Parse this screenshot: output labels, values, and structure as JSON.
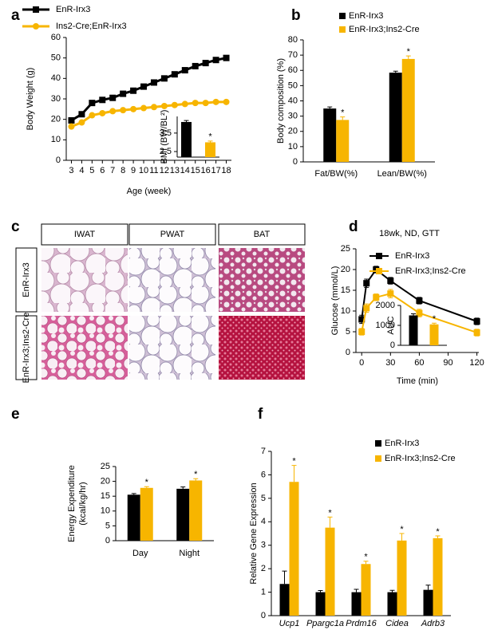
{
  "panel_labels": [
    "a",
    "b",
    "c",
    "d",
    "e",
    "f"
  ],
  "histology": {
    "columns": [
      "IWAT",
      "PWAT",
      "BAT"
    ],
    "rows": [
      "EnR-Irx3",
      "EnR-Irx3;Ins2-Cre"
    ]
  },
  "chart_data": [
    {
      "type": "line",
      "xlabel": "Age (week)",
      "ylabel": "Body Weight (g)",
      "x": [
        3,
        4,
        5,
        6,
        7,
        8,
        9,
        10,
        11,
        12,
        13,
        14,
        15,
        16,
        17,
        18
      ],
      "xlim": [
        2.5,
        18.5
      ],
      "xticks": [
        3,
        4,
        5,
        6,
        7,
        8,
        9,
        10,
        11,
        12,
        13,
        14,
        15,
        16,
        17,
        18
      ],
      "ylim": [
        0,
        60
      ],
      "yticks": [
        0,
        10,
        20,
        30,
        40,
        50,
        60
      ],
      "series": [
        {
          "name": "EnR-Irx3",
          "color": "#000000",
          "marker": "square",
          "values": [
            19.5,
            22.5,
            28,
            29.5,
            30.5,
            32.5,
            34,
            36,
            38,
            40,
            42,
            44,
            46,
            47.5,
            49,
            50
          ]
        },
        {
          "name": "Ins2-Cre;EnR-Irx3",
          "color": "#f7b500",
          "marker": "circle",
          "values": [
            16.5,
            18.5,
            22,
            23,
            24,
            24.5,
            25,
            25.5,
            26,
            26.5,
            27,
            27.5,
            28,
            28,
            28.5,
            28.5
          ]
        }
      ]
    },
    {
      "type": "bar",
      "ylabel": "BMI (BW/BL²)",
      "ylim": [
        2.2,
        4.4
      ],
      "yticks": [
        2.5,
        3.5
      ],
      "series": [
        {
          "color": "#000000",
          "values": [
            4.1
          ],
          "errors": [
            0.08
          ]
        },
        {
          "color": "#f7b500",
          "values": [
            3.0
          ],
          "errors": [
            0.07
          ],
          "annotations": [
            "*"
          ]
        }
      ]
    },
    {
      "type": "bar",
      "ylabel": "Body composition (%)",
      "categories": [
        "Fat/BW(%)",
        "Lean/BW(%)"
      ],
      "ylim": [
        0,
        80
      ],
      "yticks": [
        0,
        10,
        20,
        30,
        40,
        50,
        60,
        70,
        80
      ],
      "series": [
        {
          "name": "EnR-Irx3",
          "color": "#000000",
          "values": [
            35,
            58.5
          ],
          "errors": [
            1,
            1
          ]
        },
        {
          "name": "EnR-Irx3;Ins2-Cre",
          "color": "#f7b500",
          "values": [
            27.5,
            67.5
          ],
          "errors": [
            2,
            2
          ],
          "annotations": [
            "*",
            "*"
          ]
        }
      ]
    },
    {
      "type": "line",
      "title": "18wk, ND, GTT",
      "xlabel": "Time (min)",
      "ylabel": "Glucose (mmol/L)",
      "x": [
        0,
        5,
        15,
        30,
        60,
        120
      ],
      "xlim": [
        -6,
        122
      ],
      "xticks": [
        0,
        30,
        60,
        90,
        120
      ],
      "ylim": [
        0,
        25
      ],
      "yticks": [
        0,
        5,
        10,
        15,
        20,
        25
      ],
      "series": [
        {
          "name": "EnR-Irx3",
          "color": "#000000",
          "marker": "square",
          "values": [
            8,
            16.7,
            20,
            17.3,
            12.5,
            7.5
          ],
          "errors": [
            1,
            1,
            0.8,
            0.8,
            0.8,
            0.8
          ]
        },
        {
          "name": "EnR-Irx3;Ins2-Cre",
          "color": "#f7b500",
          "marker": "square",
          "values": [
            5,
            10.7,
            13.3,
            14.2,
            9.5,
            4.8
          ],
          "errors": [
            0.8,
            1,
            0.8,
            1,
            0.9,
            0.8
          ]
        }
      ]
    },
    {
      "type": "bar",
      "ylabel": "AUC",
      "ylim": [
        0,
        2000
      ],
      "yticks": [
        0,
        1000,
        2000
      ],
      "series": [
        {
          "color": "#000000",
          "values": [
            1500
          ],
          "errors": [
            80
          ]
        },
        {
          "color": "#f7b500",
          "values": [
            1050
          ],
          "errors": [
            60
          ],
          "annotations": [
            "*"
          ]
        }
      ]
    },
    {
      "type": "bar",
      "ylabel": [
        "Energy Expenditure",
        "(kcal/kg/hr)"
      ],
      "categories": [
        "Day",
        "Night"
      ],
      "ylim": [
        0,
        25
      ],
      "yticks": [
        0,
        5,
        10,
        15,
        20,
        25
      ],
      "series": [
        {
          "name": "EnR-Irx3",
          "color": "#000000",
          "values": [
            15.5,
            17.5
          ],
          "errors": [
            0.4,
            0.6
          ]
        },
        {
          "name": "EnR-Irx3;Ins2-Cre",
          "color": "#f7b500",
          "values": [
            17.8,
            20.3
          ],
          "errors": [
            0.4,
            0.6
          ],
          "annotations": [
            "*",
            "*"
          ]
        }
      ]
    },
    {
      "type": "bar",
      "ylabel": "Relative Gene Expression",
      "categories": [
        "Ucp1",
        "Ppargc1a",
        "Prdm16",
        "Cidea",
        "Adrb3"
      ],
      "ylim": [
        0,
        7
      ],
      "yticks": [
        0,
        1,
        2,
        3,
        4,
        5,
        6,
        7
      ],
      "series": [
        {
          "name": "EnR-Irx3",
          "color": "#000000",
          "values": [
            1.35,
            1,
            1,
            1,
            1.1
          ],
          "errors": [
            0.55,
            0.07,
            0.12,
            0.08,
            0.2
          ]
        },
        {
          "name": "EnR-Irx3;Ins2-Cre",
          "color": "#f7b500",
          "values": [
            5.7,
            3.75,
            2.2,
            3.2,
            3.3
          ],
          "errors": [
            0.7,
            0.45,
            0.12,
            0.3,
            0.1
          ],
          "annotations": [
            "*",
            "*",
            "*",
            "*",
            "*"
          ]
        }
      ]
    }
  ]
}
